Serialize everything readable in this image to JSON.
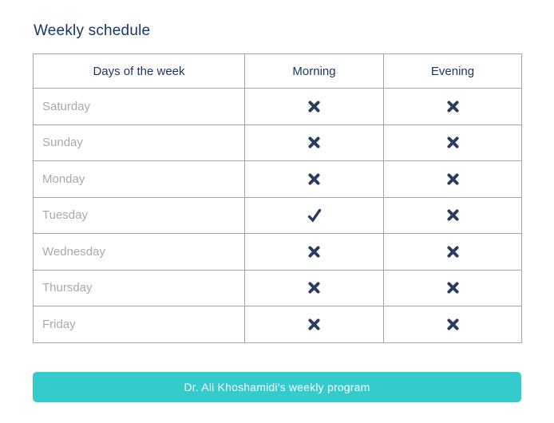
{
  "page": {
    "title": "Weekly schedule"
  },
  "table": {
    "headers": {
      "days": "Days of the week",
      "morning": "Morning",
      "evening": "Evening"
    },
    "rows": [
      {
        "day": "Saturday",
        "morning": "cross",
        "evening": "cross"
      },
      {
        "day": "Sunday",
        "morning": "cross",
        "evening": "cross"
      },
      {
        "day": "Monday",
        "morning": "cross",
        "evening": "cross"
      },
      {
        "day": "Tuesday",
        "morning": "check",
        "evening": "cross"
      },
      {
        "day": "Wednesday",
        "morning": "cross",
        "evening": "cross"
      },
      {
        "day": "Thursday",
        "morning": "cross",
        "evening": "cross"
      },
      {
        "day": "Friday",
        "morning": "cross",
        "evening": "cross"
      }
    ]
  },
  "button": {
    "label": "Dr. Ali Khoshamidi's weekly program"
  },
  "icons": {
    "cross": "cross-icon",
    "check": "check-icon"
  },
  "colors": {
    "title_navy": "#1b3768",
    "icon_navy": "#2b3c5c",
    "day_gray": "#a9a9a9",
    "border_gray": "#a5a5a5",
    "button_teal": "#33cbcb",
    "button_text": "#ffffff"
  }
}
